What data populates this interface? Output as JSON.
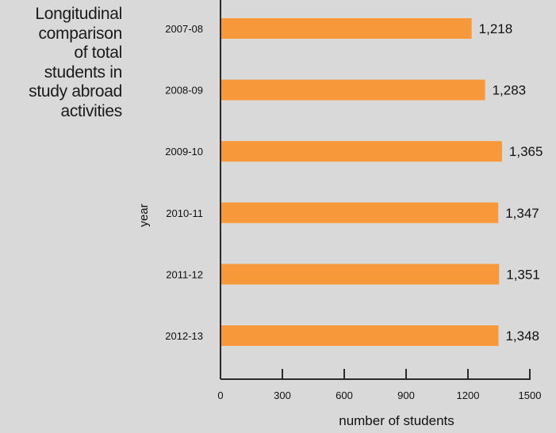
{
  "side_title_lines": [
    "Longitudinal",
    "comparison",
    "of total",
    "students in",
    "study abroad",
    "activities"
  ],
  "chart_data": {
    "type": "bar",
    "orientation": "horizontal",
    "categories": [
      "2007-08",
      "2008-09",
      "2009-10",
      "2010-11",
      "2011-12",
      "2012-13"
    ],
    "values": [
      1218,
      1283,
      1365,
      1347,
      1351,
      1348
    ],
    "value_labels": [
      "1,218",
      "1,283",
      "1,365",
      "1,347",
      "1,351",
      "1,348"
    ],
    "xlabel": "number of students",
    "ylabel": "year",
    "xlim": [
      0,
      1500
    ],
    "xticks": [
      0,
      300,
      600,
      900,
      1200,
      1500
    ],
    "xtick_labels": [
      "0",
      "300",
      "600",
      "900",
      "1200",
      "1500"
    ],
    "bar_color": "#f7993a",
    "axis_color": "#2a2a2a",
    "grid": false,
    "legend": "none"
  }
}
